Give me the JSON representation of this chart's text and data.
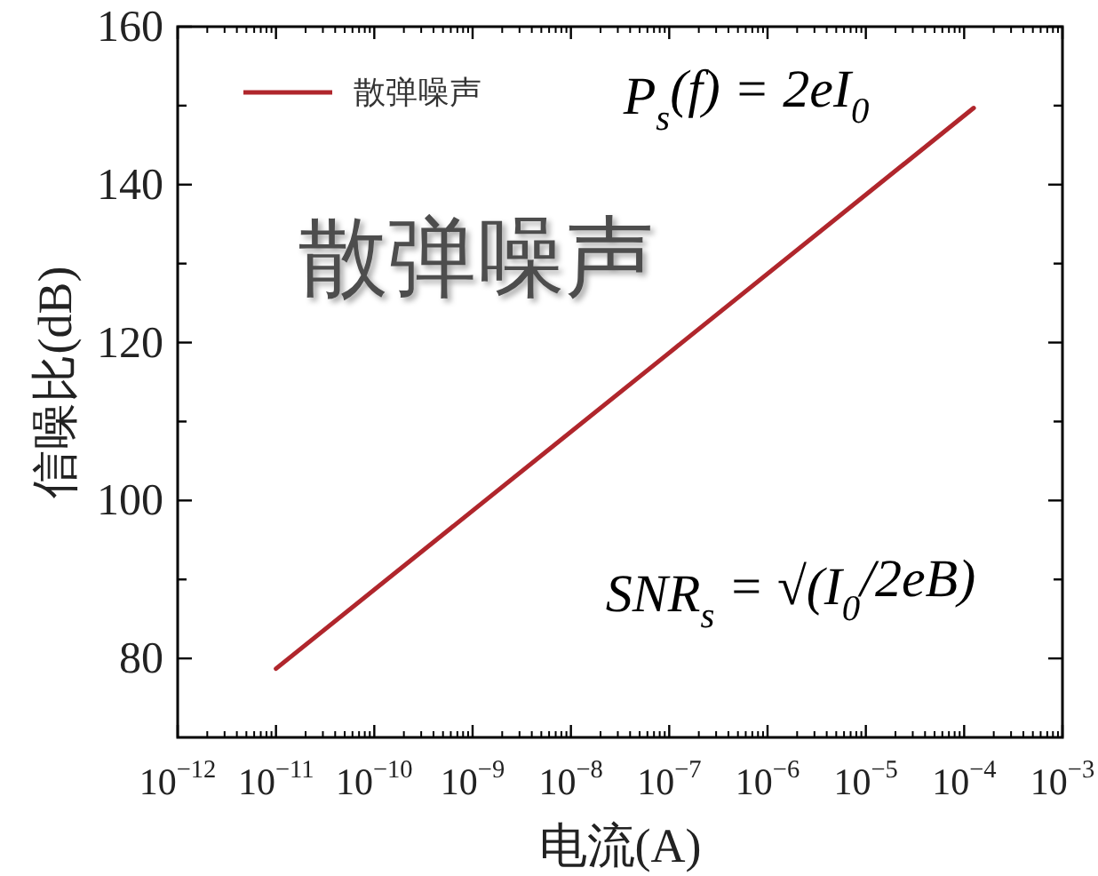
{
  "chart_data": {
    "type": "line",
    "xlabel": "电流(A)",
    "ylabel": "信噪比(dB)",
    "log": "x",
    "xlim": [
      1e-12,
      0.001
    ],
    "xticks": [
      {
        "value": 1e-12,
        "label": "10$^{−12}$"
      },
      {
        "value": 1e-11,
        "label": "10$^{−11}$"
      },
      {
        "value": 1e-10,
        "label": "10$^{−10}$"
      },
      {
        "value": 1e-09,
        "label": "10$^{−9}$"
      },
      {
        "value": 1e-08,
        "label": "10$^{−8}$"
      },
      {
        "value": 1e-07,
        "label": "10$^{−7}$"
      },
      {
        "value": 1e-06,
        "label": "10$^{−6}$"
      },
      {
        "value": 1e-05,
        "label": "10$^{−5}$"
      },
      {
        "value": 0.0001,
        "label": "10$^{−4}$"
      },
      {
        "value": 0.001,
        "label": "10$^{−3}$"
      }
    ],
    "ylim": [
      70,
      160
    ],
    "yticks": [
      80,
      {
        "value": 90,
        "label": null
      },
      100,
      {
        "value": 110,
        "label": null
      },
      120,
      {
        "value": 130,
        "label": null
      },
      140,
      {
        "value": 150,
        "label": null
      },
      160
    ],
    "series": [
      {
        "name": "散弹噪声",
        "color": "#b0262c",
        "x": [
          1e-11,
          1e-07,
          0.000125
        ],
        "values": [
          78.7,
          118.7,
          149.7
        ]
      }
    ],
    "legend": "top left",
    "line_style": "solid",
    "annotations": [
      "散弹噪声",
      "P$_{s}$(f) = 2eI$_{0}$",
      "SNR$_{s}$ = √(I$_{0}$/2eB)"
    ]
  }
}
